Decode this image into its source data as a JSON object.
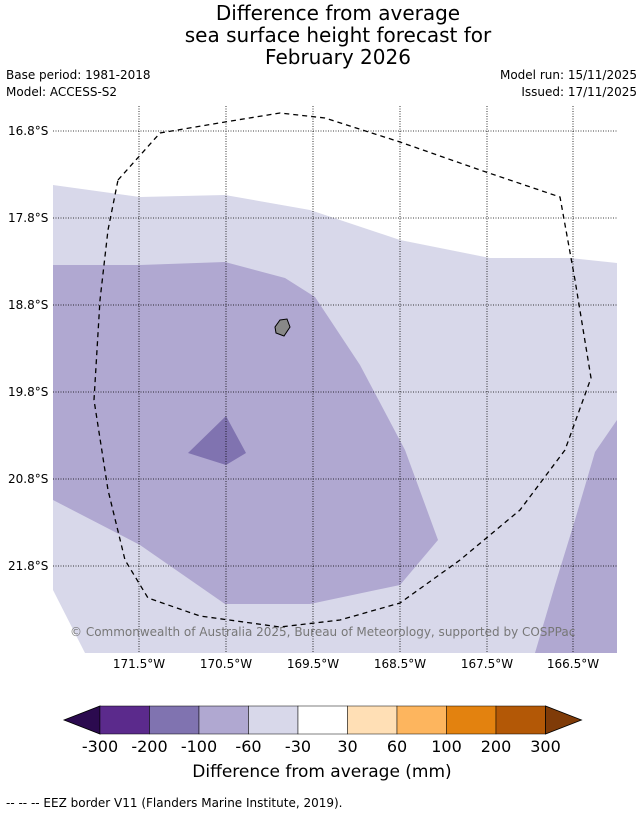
{
  "title": {
    "line1": "Difference from average",
    "line2": "sea surface height forecast for",
    "line3": "February 2026"
  },
  "meta": {
    "base_period": "Base period: 1981-2018",
    "model": "Model: ACCESS-S2",
    "model_run": "Model run: 15/11/2025",
    "issued": "Issued: 17/11/2025"
  },
  "map": {
    "lat_labels": [
      "16.8°S",
      "17.8°S",
      "18.8°S",
      "19.8°S",
      "20.8°S",
      "21.8°S"
    ],
    "lon_labels": [
      "171.5°W",
      "170.5°W",
      "169.5°W",
      "168.5°W",
      "167.5°W",
      "166.5°W"
    ],
    "copyright": "© Commonwealth of Australia 2025, Bureau of Meteorology, supported by COSPPac"
  },
  "colorbar": {
    "title": "Difference from average (mm)",
    "ticks": [
      "-300",
      "-200",
      "-100",
      "-60",
      "-30",
      "30",
      "60",
      "100",
      "200",
      "300"
    ],
    "colors": [
      "#2b0a4f",
      "#5b2a8c",
      "#8073b0",
      "#b0a8d1",
      "#d8d8ea",
      "#ffffff",
      "#ffdfb5",
      "#fdb55e",
      "#e3820f",
      "#b35806",
      "#7f3b08"
    ]
  },
  "footnote": "--  --  -- EEZ border V11 (Flanders Marine Institute, 2019)."
}
